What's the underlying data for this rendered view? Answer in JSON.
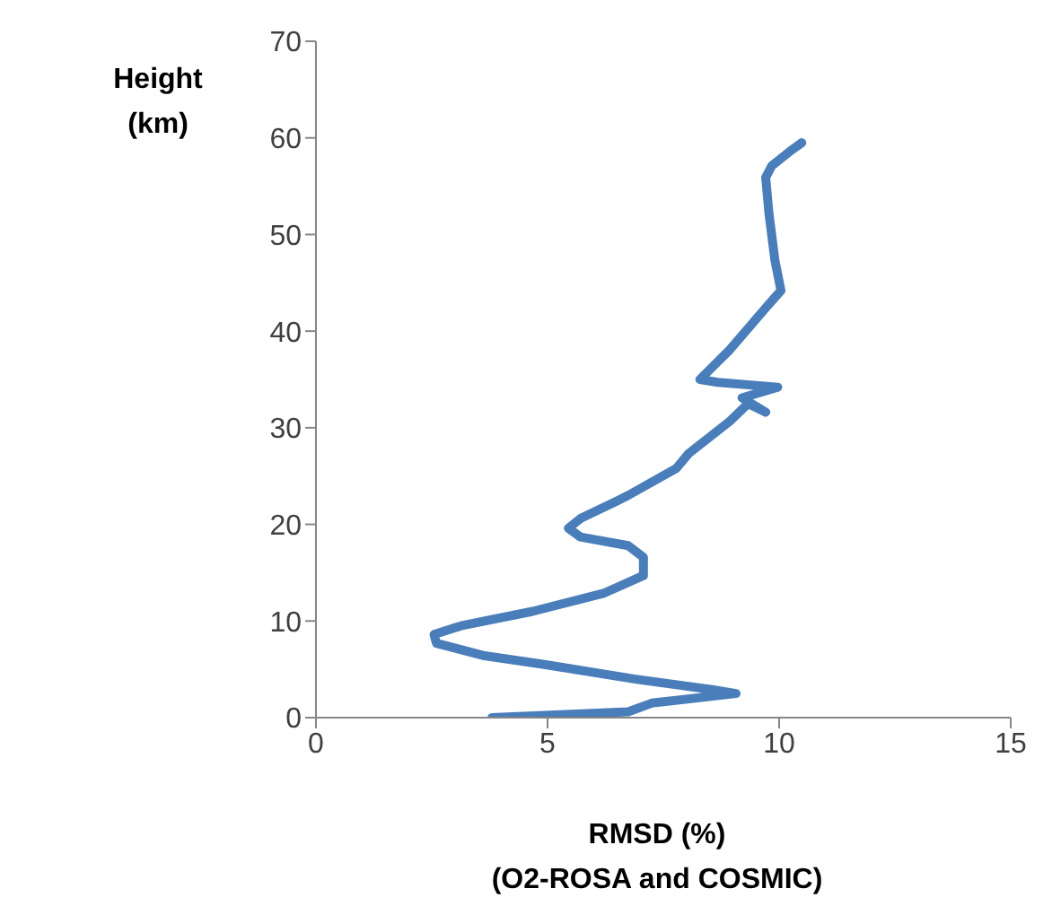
{
  "chart_data": {
    "type": "line",
    "xlabel": "RMSD (%)\n(O2-ROSA and COSMIC)",
    "ylabel": "Height\n(km)",
    "series": [
      {
        "color": "#4a7ebb",
        "x": [
          3.8,
          6.74,
          7.25,
          9.07,
          8.55,
          6.87,
          4.93,
          3.64,
          2.6,
          2.55,
          3.13,
          4.68,
          6.23,
          7.07,
          7.07,
          6.74,
          5.71,
          5.45,
          5.71,
          6.49,
          6.74,
          7.78,
          8.04,
          8.94,
          9.33,
          9.71,
          9.2,
          9.97,
          8.68,
          8.29,
          8.94,
          9.71,
          10.04,
          9.91,
          9.78,
          9.71,
          9.84,
          10.23,
          10.49
        ],
        "values": [
          0,
          0.6,
          1.5,
          2.5,
          2.9,
          4,
          5.5,
          6.4,
          7.7,
          8.6,
          9.5,
          11,
          12.9,
          14.7,
          16.6,
          17.8,
          18.7,
          19.6,
          20.6,
          22.4,
          23,
          25.8,
          27.3,
          30.7,
          32.5,
          31.6,
          33.1,
          34.2,
          34.7,
          35,
          38.1,
          42.4,
          44.2,
          47.3,
          52.2,
          55.9,
          57.1,
          58.6,
          59.5
        ]
      }
    ],
    "xlim": [
      0,
      15
    ],
    "xticks": [
      0,
      5,
      10,
      15
    ],
    "ylim": [
      0,
      70
    ],
    "yticks": [
      0,
      10,
      20,
      30,
      40,
      50,
      60,
      70
    ],
    "grid": false,
    "legend": false,
    "marker": "none",
    "line_style": "solid"
  }
}
